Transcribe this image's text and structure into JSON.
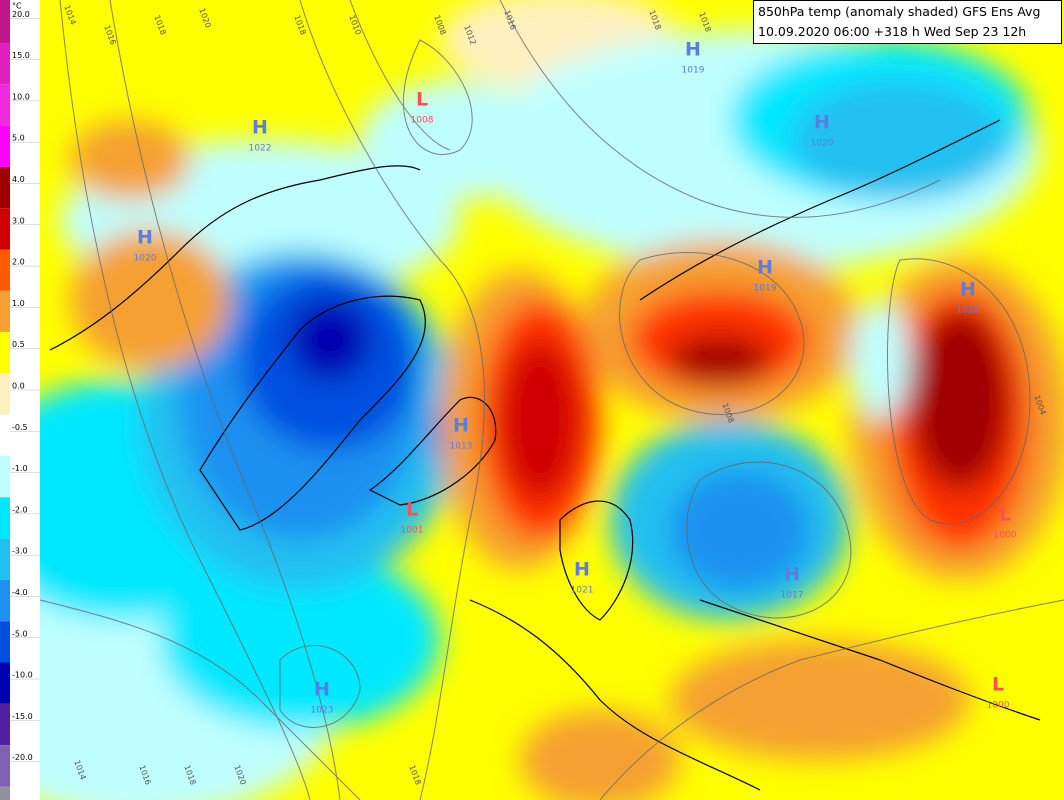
{
  "title": {
    "line1": "850hPa temp (anomaly shaded) GFS Ens Avg",
    "line2": "10.09.2020 06:00 +318 h Wed Sep 23 12h"
  },
  "legend": {
    "unit": "°C",
    "labels": [
      "20.0",
      "15.0",
      "10.0",
      "5.0",
      "4.0",
      "3.0",
      "2.0",
      "1.0",
      "0.5",
      "0.0",
      "-0.5",
      "-1.0",
      "-2.0",
      "-3.0",
      "-4.0",
      "-5.0",
      "-10.0",
      "-15.0",
      "-20.0"
    ]
  },
  "pressure_centers": [
    {
      "type": "H",
      "value": "1019"
    },
    {
      "type": "H",
      "value": "1022"
    },
    {
      "type": "L",
      "value": "1008"
    },
    {
      "type": "H",
      "value": "1020"
    },
    {
      "type": "H",
      "value": "1020"
    },
    {
      "type": "H",
      "value": "1019"
    },
    {
      "type": "H",
      "value": "1022"
    },
    {
      "type": "H",
      "value": "1013"
    },
    {
      "type": "L",
      "value": "1001"
    },
    {
      "type": "H",
      "value": "1021"
    },
    {
      "type": "H",
      "value": "1017"
    },
    {
      "type": "L",
      "value": "1000"
    },
    {
      "type": "H",
      "value": "1023"
    },
    {
      "type": "L",
      "value": "1000"
    }
  ],
  "isobar_labels": [
    "1014",
    "1016",
    "1018",
    "1020",
    "1018",
    "1010",
    "1008",
    "1012",
    "1016",
    "1018",
    "1018",
    "1008",
    "1004",
    "1014",
    "1016",
    "1018",
    "1020",
    "1018"
  ]
}
